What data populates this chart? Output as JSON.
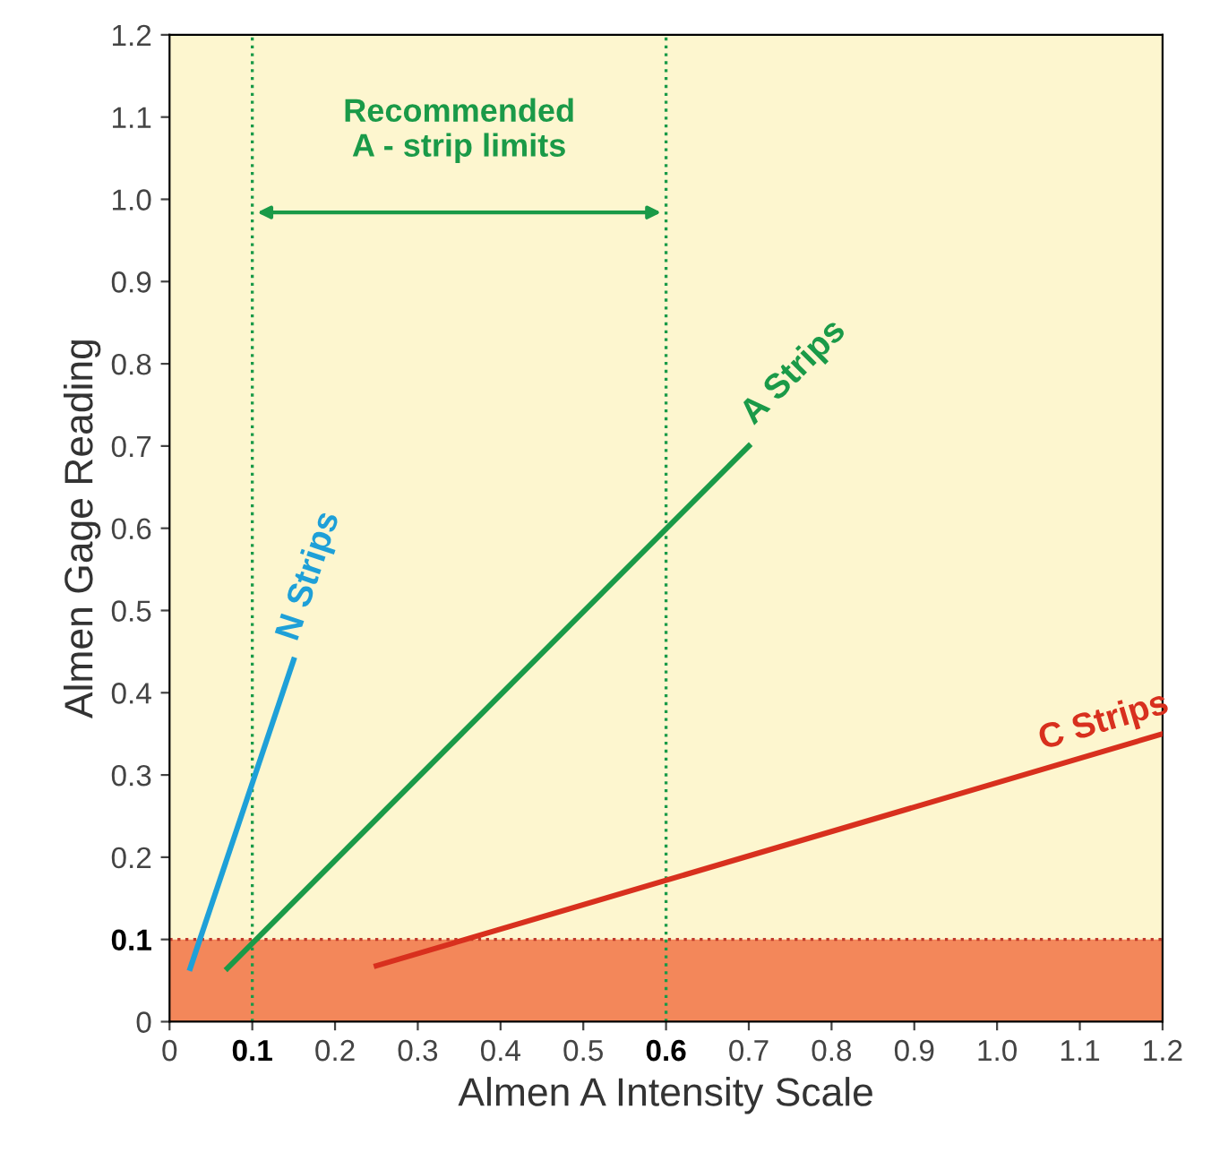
{
  "chart_data": {
    "type": "line",
    "xlabel": "Almen A Intensity Scale",
    "ylabel": "Almen Gage Reading",
    "series": [
      {
        "name": "N Strips",
        "color": "#1ea0d8",
        "x": [
          0.025,
          0.15
        ],
        "values": [
          0.065,
          0.44
        ]
      },
      {
        "name": "A Strips",
        "color": "#1a9a48",
        "x": [
          0.07,
          0.7
        ],
        "values": [
          0.065,
          0.7
        ]
      },
      {
        "name": "C Strips",
        "color": "#d8301e",
        "x": [
          0.25,
          1.2
        ],
        "values": [
          0.068,
          0.35
        ]
      }
    ],
    "xlim": [
      0,
      1.2
    ],
    "ylim": [
      0,
      1.2
    ],
    "xticks": [
      0,
      0.1,
      0.2,
      0.3,
      0.4,
      0.5,
      0.6,
      0.7,
      0.8,
      0.9,
      {
        "value": 1,
        "label": "1.0"
      },
      1.1,
      1.2
    ],
    "yticks": [
      {
        "value": 0,
        "label": "0"
      },
      0.1,
      0.2,
      0.3,
      0.4,
      0.5,
      0.6,
      0.7,
      0.8,
      0.9,
      {
        "value": 1,
        "label": "1.0"
      },
      1.1,
      1.2
    ],
    "ref_lines": [
      {
        "axis": "x",
        "value": 0.1,
        "color": "#1a9a48",
        "line_style": "dotted"
      },
      {
        "axis": "x",
        "value": 0.6,
        "color": "#1a9a48",
        "line_style": "dotted"
      },
      {
        "axis": "y",
        "value": 0.1,
        "color": "#c0392b",
        "line_style": "dotted"
      }
    ],
    "bands": [
      {
        "axis": "y",
        "from": 0,
        "to": 0.1,
        "color": "#f3875a"
      }
    ],
    "annotations": [
      "Recommended\nA - strip limits"
    ],
    "grid": false,
    "legend": false,
    "marker": "none",
    "line_style": "solid"
  }
}
